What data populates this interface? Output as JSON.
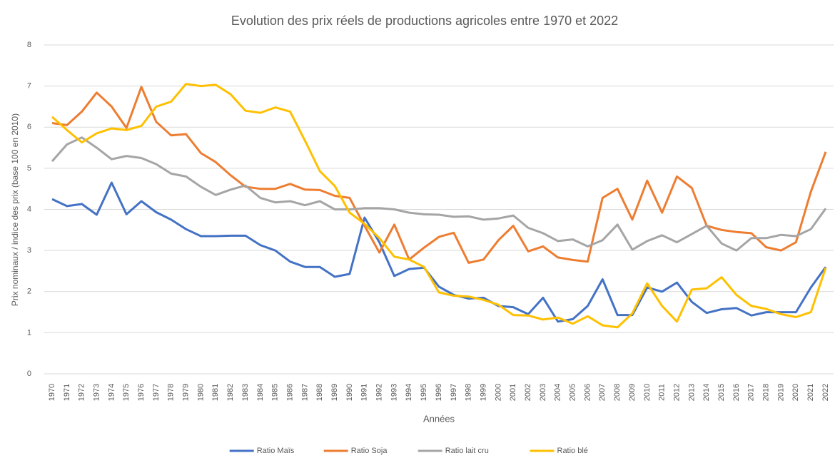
{
  "chart_data": {
    "type": "line",
    "title": "Evolution des prix réels de productions agricoles entre 1970 et 2022",
    "x_label": "Années",
    "y_label": "Prix nominaux / indice des prix (base 100 en 2010)",
    "x": [
      1970,
      1971,
      1972,
      1973,
      1974,
      1975,
      1976,
      1977,
      1978,
      1979,
      1980,
      1981,
      1982,
      1983,
      1984,
      1985,
      1986,
      1987,
      1988,
      1989,
      1990,
      1991,
      1992,
      1993,
      1994,
      1995,
      1996,
      1997,
      1998,
      1999,
      2000,
      2001,
      2002,
      2003,
      2004,
      2005,
      2006,
      2007,
      2008,
      2009,
      2010,
      2011,
      2012,
      2013,
      2014,
      2015,
      2016,
      2017,
      2018,
      2019,
      2020,
      2021,
      2022
    ],
    "xlim": [
      1970,
      2022
    ],
    "ylim": [
      0,
      8
    ],
    "yticks": [
      0,
      1,
      2,
      3,
      4,
      5,
      6,
      7,
      8
    ],
    "grid": true,
    "legend": "bottom",
    "series": [
      {
        "name": "Ratio Maïs",
        "color": "#4472c4",
        "values": [
          4.25,
          4.08,
          4.13,
          3.87,
          4.65,
          3.88,
          4.2,
          3.93,
          3.75,
          3.52,
          3.35,
          3.35,
          3.36,
          3.36,
          3.13,
          3.0,
          2.73,
          2.6,
          2.6,
          2.36,
          2.43,
          3.8,
          3.2,
          2.38,
          2.55,
          2.58,
          2.12,
          1.92,
          1.83,
          1.85,
          1.65,
          1.62,
          1.45,
          1.85,
          1.27,
          1.33,
          1.65,
          2.3,
          1.43,
          1.43,
          2.1,
          2.0,
          2.22,
          1.75,
          1.48,
          1.57,
          1.6,
          1.42,
          1.5,
          1.5,
          1.5,
          2.1,
          2.6
        ]
      },
      {
        "name": "Ratio Soja",
        "color": "#ed7d31",
        "values": [
          6.1,
          6.05,
          6.38,
          6.84,
          6.5,
          5.98,
          6.98,
          6.13,
          5.8,
          5.83,
          5.37,
          5.15,
          4.83,
          4.55,
          4.5,
          4.5,
          4.62,
          4.48,
          4.47,
          4.33,
          4.28,
          3.6,
          2.95,
          3.63,
          2.78,
          3.07,
          3.33,
          3.43,
          2.7,
          2.78,
          3.25,
          3.6,
          2.98,
          3.1,
          2.83,
          2.77,
          2.73,
          4.28,
          4.5,
          3.75,
          4.7,
          3.92,
          4.8,
          4.52,
          3.6,
          3.5,
          3.45,
          3.42,
          3.08,
          3.0,
          3.2,
          4.43,
          5.4
        ]
      },
      {
        "name": "Ratio lait cru",
        "color": "#a5a5a5",
        "values": [
          5.17,
          5.58,
          5.75,
          5.5,
          5.22,
          5.3,
          5.25,
          5.1,
          4.87,
          4.8,
          4.55,
          4.35,
          4.48,
          4.58,
          4.28,
          4.17,
          4.2,
          4.1,
          4.2,
          4.0,
          4.0,
          4.03,
          4.03,
          4.0,
          3.92,
          3.88,
          3.87,
          3.82,
          3.83,
          3.75,
          3.78,
          3.85,
          3.55,
          3.42,
          3.23,
          3.27,
          3.1,
          3.25,
          3.63,
          3.02,
          3.23,
          3.37,
          3.2,
          3.4,
          3.6,
          3.17,
          3.0,
          3.3,
          3.3,
          3.38,
          3.35,
          3.52,
          4.02
        ]
      },
      {
        "name": "Ratio blé",
        "color": "#ffc000",
        "values": [
          6.25,
          5.93,
          5.63,
          5.85,
          5.97,
          5.93,
          6.03,
          6.5,
          6.62,
          7.05,
          7.0,
          7.03,
          6.8,
          6.4,
          6.35,
          6.48,
          6.38,
          5.67,
          4.93,
          4.57,
          3.92,
          3.65,
          3.3,
          2.85,
          2.78,
          2.6,
          1.98,
          1.9,
          1.88,
          1.8,
          1.68,
          1.43,
          1.42,
          1.32,
          1.37,
          1.22,
          1.4,
          1.18,
          1.13,
          1.47,
          2.2,
          1.65,
          1.27,
          2.05,
          2.08,
          2.35,
          1.92,
          1.65,
          1.58,
          1.45,
          1.38,
          1.5,
          2.58
        ]
      }
    ]
  }
}
